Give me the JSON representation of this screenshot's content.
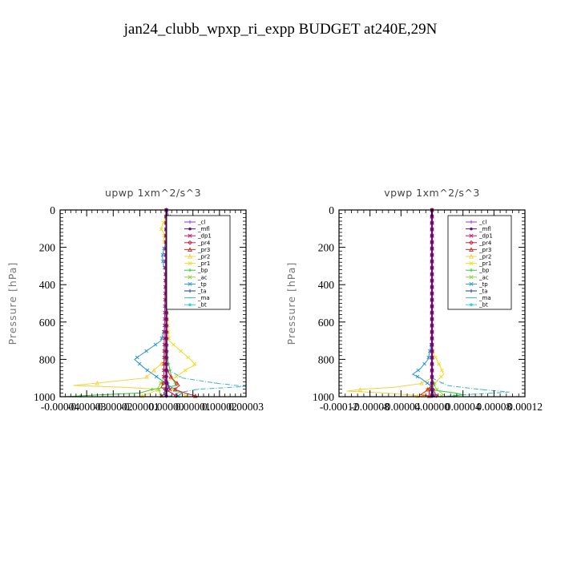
{
  "figure": {
    "title": "jan24_clubb_wpxp_ri_expp  BUDGET at240E,29N"
  },
  "legend_items": [
    {
      "name": "_cl",
      "color": "#9b30d0",
      "marker": "+"
    },
    {
      "name": "_mfl",
      "color": "#6a0d7a",
      "marker": "dot"
    },
    {
      "name": "_dp1",
      "color": "#c0185c",
      "marker": "x"
    },
    {
      "name": "_pr4",
      "color": "#c81e3c",
      "marker": "diamond"
    },
    {
      "name": "_pr3",
      "color": "#e02828",
      "marker": "tri"
    },
    {
      "name": "_pr2",
      "color": "#f4d23c",
      "marker": "tri"
    },
    {
      "name": "_pr1",
      "color": "#f0dc1e",
      "marker": "x"
    },
    {
      "name": "_bp",
      "color": "#32c83c",
      "marker": "+"
    },
    {
      "name": "_ac",
      "color": "#8cd23c",
      "marker": "x"
    },
    {
      "name": "_tp",
      "color": "#2896d2",
      "marker": "x"
    },
    {
      "name": "_ta",
      "color": "#1e3c8c",
      "marker": "+"
    },
    {
      "name": "_ma",
      "color": "#3cb4c8",
      "marker": "dash"
    },
    {
      "name": "_bt",
      "color": "#28d2e6",
      "marker": "dot"
    }
  ],
  "chart_data": [
    {
      "type": "line",
      "title": "upwp   1xm^2/s^3",
      "ylabel": "Pressure [hPa]",
      "xlim": [
        -4e-05,
        3e-05
      ],
      "ylim": [
        1000,
        0
      ],
      "y_ticks": [
        0,
        200,
        400,
        600,
        800,
        1000
      ],
      "x_ticks": [
        -4e-05,
        -3e-05,
        -2e-05,
        -1e-05,
        0,
        1e-05,
        2e-05,
        3e-05
      ],
      "x_tick_labels": [
        "-0.00004",
        "-0.00003",
        "-0.00002",
        "-0.00001",
        "0.00000",
        "0.00001",
        "0.00002",
        "0.00003"
      ],
      "legend_position": "top-right",
      "series": [
        {
          "name": "_pr1",
          "p": [
            0,
            50,
            100,
            130,
            160,
            200,
            300,
            500,
            700,
            750,
            800,
            830,
            850,
            900,
            930,
            950,
            970,
            1000
          ],
          "values": [
            0,
            -5e-07,
            -2e-06,
            -8e-07,
            -1e-06,
            -3e-07,
            0,
            0,
            1e-06,
            5e-06,
            9e-06,
            1.1e-05,
            8e-06,
            3e-06,
            -2e-06,
            0,
            4e-06,
            8e-06
          ]
        },
        {
          "name": "_pr2",
          "p": [
            0,
            800,
            900,
            930,
            940,
            950,
            960,
            980,
            1000
          ],
          "values": [
            0,
            0,
            -8e-06,
            -2.8e-05,
            -3.5e-05,
            -1.5e-05,
            -3e-06,
            -6e-06,
            -1e-05
          ]
        },
        {
          "name": "_tp",
          "p": [
            0,
            50,
            100,
            150,
            200,
            250,
            300,
            350,
            400,
            450,
            500,
            600,
            700,
            750,
            800,
            850,
            900,
            950,
            980,
            1000
          ],
          "values": [
            0,
            1.5e-06,
            2e-06,
            5e-07,
            -8e-07,
            -1.5e-06,
            -1e-06,
            5e-07,
            1e-06,
            5e-07,
            0,
            0,
            -2e-06,
            -7e-06,
            -1.2e-05,
            -8e-06,
            -3e-06,
            2e-06,
            6e-06,
            4e-06
          ]
        },
        {
          "name": "_ma",
          "p": [
            0,
            850,
            900,
            930,
            945,
            960,
            980,
            1000
          ],
          "values": [
            0,
            0,
            6e-06,
            2e-05,
            3e-05,
            1.2e-05,
            4e-06,
            1e-06
          ]
        },
        {
          "name": "_bp",
          "p": [
            0,
            200,
            300,
            350,
            400,
            450,
            500,
            600,
            800,
            900,
            940,
            960,
            980,
            990,
            1000
          ],
          "values": [
            0,
            5e-07,
            1.2e-06,
            2e-06,
            2.5e-06,
            1e-06,
            0,
            0,
            5e-07,
            2e-06,
            4e-06,
            -5e-06,
            -1e-05,
            -2.5e-05,
            -3.8e-05
          ]
        },
        {
          "name": "_ac",
          "p": [
            0,
            600,
            900,
            950,
            1000
          ],
          "values": [
            0,
            0,
            -1e-06,
            -3e-06,
            -2e-06
          ]
        },
        {
          "name": "_pr3",
          "p": [
            0,
            850,
            900,
            940,
            960,
            980,
            1000
          ],
          "values": [
            0,
            0,
            2e-06,
            5e-06,
            3e-06,
            7e-06,
            1.2e-05
          ]
        },
        {
          "name": "_pr4",
          "p": [
            0,
            900,
            950,
            980,
            1000
          ],
          "values": [
            0,
            0,
            -2e-06,
            2e-06,
            4e-06
          ]
        },
        {
          "name": "_dp1",
          "p": [
            0,
            900,
            960,
            1000
          ],
          "values": [
            0,
            -1e-06,
            1.5e-06,
            -2e-06
          ]
        },
        {
          "name": "_ta",
          "p": [
            0,
            900,
            950,
            980,
            1000
          ],
          "values": [
            0,
            0,
            1e-06,
            -1e-06,
            0
          ]
        },
        {
          "name": "_cl",
          "p": [
            0,
            1000
          ],
          "values": [
            0,
            0
          ]
        },
        {
          "name": "_mfl",
          "p": [
            0,
            1000
          ],
          "values": [
            0,
            0
          ]
        }
      ]
    },
    {
      "type": "line",
      "title": "vpwp   1xm^2/s^3",
      "ylabel": "Pressure [hPa]",
      "xlim": [
        -0.00012,
        0.00012
      ],
      "ylim": [
        1000,
        0
      ],
      "y_ticks": [
        0,
        200,
        400,
        600,
        800,
        1000
      ],
      "x_ticks": [
        -0.00012,
        -8e-05,
        -4e-05,
        0,
        4e-05,
        8e-05,
        0.00012
      ],
      "x_tick_labels": [
        "-0.00012",
        "-0.00008",
        "-0.00004",
        "0.00000",
        "0.00004",
        "0.00008",
        "0.00012"
      ],
      "legend_position": "top-right",
      "series": [
        {
          "name": "_pr1",
          "p": [
            0,
            700,
            770,
            800,
            850,
            880,
            900,
            930,
            950,
            970,
            1000
          ],
          "values": [
            0,
            0,
            2e-06,
            6e-06,
            1.2e-05,
            1.5e-05,
            1e-05,
            3e-06,
            -4e-06,
            -8e-06,
            -1.2e-05
          ]
        },
        {
          "name": "_pr2",
          "p": [
            0,
            900,
            930,
            950,
            960,
            970,
            980,
            990,
            1000
          ],
          "values": [
            0,
            0,
            -1.5e-05,
            -5e-05,
            -9e-05,
            -0.00011,
            -6e-05,
            -3e-05,
            -1e-05
          ]
        },
        {
          "name": "_tp",
          "p": [
            0,
            700,
            800,
            850,
            880,
            900,
            930,
            950,
            1000
          ],
          "values": [
            0,
            0,
            -5e-06,
            -1.5e-05,
            -2.5e-05,
            -1.5e-05,
            -5e-06,
            0,
            0
          ]
        },
        {
          "name": "_ma",
          "p": [
            0,
            900,
            940,
            960,
            975,
            990,
            1000
          ],
          "values": [
            0,
            0,
            2e-05,
            6e-05,
            0.0001,
            4e-05,
            1e-05
          ]
        },
        {
          "name": "_bp",
          "p": [
            0,
            900,
            940,
            960,
            980,
            990,
            1000
          ],
          "values": [
            0,
            0,
            4e-06,
            -6e-06,
            3e-05,
            4e-05,
            2e-05
          ]
        },
        {
          "name": "_ac",
          "p": [
            0,
            920,
            960,
            990,
            1000
          ],
          "values": [
            0,
            0,
            6e-06,
            1.5e-05,
            1e-05
          ]
        },
        {
          "name": "_pr3",
          "p": [
            0,
            940,
            970,
            990,
            1000
          ],
          "values": [
            0,
            0,
            -8e-06,
            -1.5e-05,
            5e-06
          ]
        },
        {
          "name": "_pr4",
          "p": [
            0,
            950,
            980,
            1000
          ],
          "values": [
            0,
            0,
            4e-06,
            6e-06
          ]
        },
        {
          "name": "_dp1",
          "p": [
            0,
            950,
            980,
            1000
          ],
          "values": [
            0,
            0,
            -4e-06,
            3e-06
          ]
        },
        {
          "name": "_ta",
          "p": [
            0,
            960,
            990,
            1000
          ],
          "values": [
            0,
            0,
            3e-06,
            0
          ]
        },
        {
          "name": "_cl",
          "p": [
            0,
            1000
          ],
          "values": [
            0,
            0
          ]
        },
        {
          "name": "_mfl",
          "p": [
            0,
            1000
          ],
          "values": [
            0,
            0
          ]
        }
      ]
    }
  ]
}
